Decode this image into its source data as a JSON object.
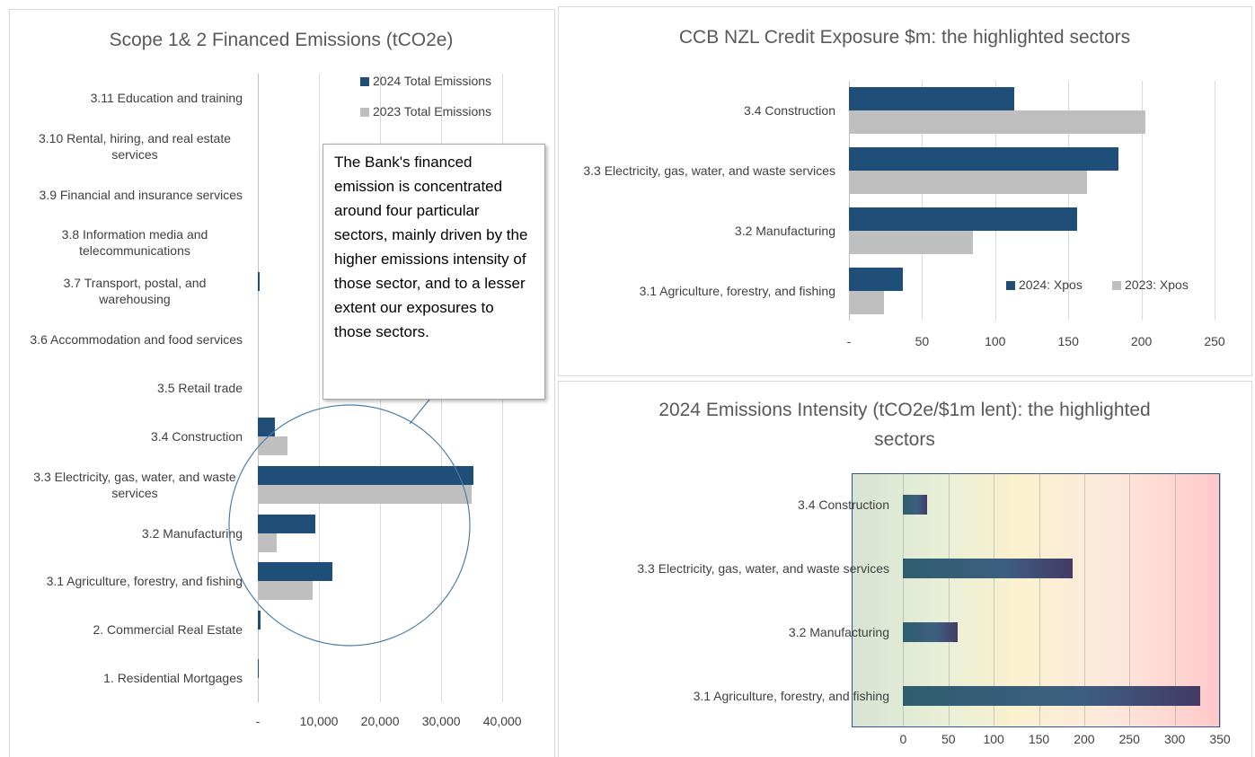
{
  "chart_data": [
    {
      "type": "bar",
      "orientation": "horizontal",
      "title": "Scope 1& 2 Financed Emissions (tCO2e)",
      "categories": [
        "3.11 Education and training",
        "3.10 Rental, hiring, and real estate services",
        "3.9 Financial and insurance services",
        "3.8 Information media and telecommunications",
        "3.7 Transport, postal, and warehousing",
        "3.6 Accommodation and food services",
        "3.5 Retail trade",
        "3.4 Construction",
        "3.3 Electricity, gas, water, and waste services",
        "3.2 Manufacturing",
        "3.1 Agriculture, forestry, and fishing",
        "2. Commercial Real Estate",
        "1. Residential Mortgages"
      ],
      "series": [
        {
          "name": "2024 Total Emissions",
          "color": "#1f4e79",
          "values": [
            0,
            0,
            0,
            0,
            300,
            0,
            0,
            2800,
            35300,
            9400,
            12200,
            400,
            200
          ]
        },
        {
          "name": "2023 Total Emissions",
          "color": "#bfbfbf",
          "values": [
            0,
            0,
            0,
            200,
            0,
            0,
            0,
            4800,
            35000,
            3100,
            8900,
            150,
            100
          ]
        }
      ],
      "xlim": [
        0,
        46000
      ],
      "xticks": [
        {
          "value": 0,
          "label": "-"
        },
        {
          "value": 10000,
          "label": "10,000"
        },
        {
          "value": 20000,
          "label": "20,000"
        },
        {
          "value": 30000,
          "label": "30,000"
        },
        {
          "value": 40000,
          "label": "40,000"
        }
      ],
      "grid": true,
      "legend": "top-right",
      "annotation": "The Bank's financed emission is concentrated around four particular sectors, mainly driven by the higher emissions intensity of those sector, and to a lesser extent our exposures to those sectors."
    },
    {
      "type": "bar",
      "orientation": "horizontal",
      "title": "CCB NZL Credit Exposure $m: the highlighted sectors",
      "categories": [
        "3.4 Construction",
        "3.3 Electricity, gas, water, and waste services",
        "3.2 Manufacturing",
        "3.1 Agriculture, forestry, and fishing"
      ],
      "series": [
        {
          "name": "2024: Xpos",
          "color": "#1f4e79",
          "values": [
            113,
            184,
            156,
            37
          ]
        },
        {
          "name": "2023: Xpos",
          "color": "#bfbfbf",
          "values": [
            203,
            163,
            85,
            24
          ]
        }
      ],
      "xlim": [
        0,
        250
      ],
      "xticks": [
        {
          "value": 0,
          "label": "-"
        },
        50,
        100,
        150,
        200,
        250
      ],
      "grid": true,
      "legend": "bottom-right"
    },
    {
      "type": "bar",
      "orientation": "horizontal",
      "title": "2024 Emissions Intensity (tCO2e/$1m lent): the highlighted sectors",
      "categories": [
        "3.4 Construction",
        "3.3 Electricity, gas, water, and waste services",
        "3.2 Manufacturing",
        "3.1 Agriculture, forestry, and fishing"
      ],
      "values": [
        26,
        187,
        60,
        328
      ],
      "color": "#2e5e6e",
      "xlim": [
        -57,
        350
      ],
      "xticks": [
        0,
        50,
        100,
        150,
        200,
        250,
        300,
        350
      ],
      "grid": true
    }
  ]
}
